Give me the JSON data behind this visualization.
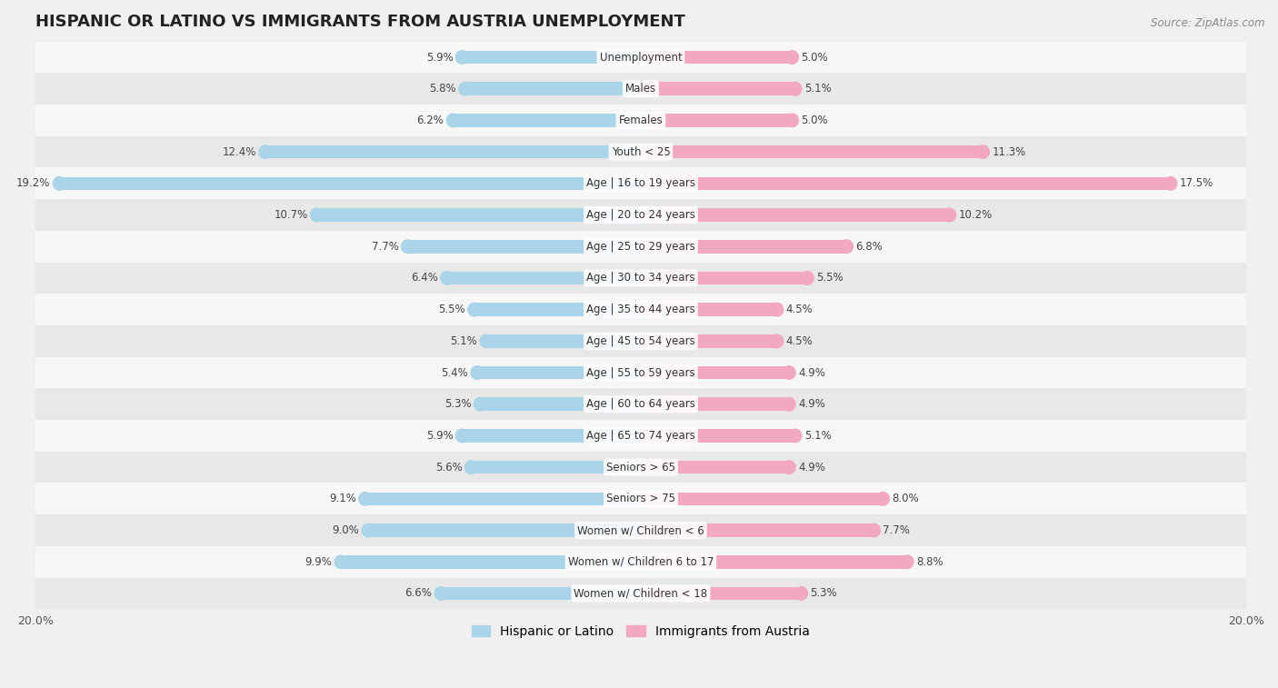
{
  "title": "HISPANIC OR LATINO VS IMMIGRANTS FROM AUSTRIA UNEMPLOYMENT",
  "source": "Source: ZipAtlas.com",
  "categories": [
    "Unemployment",
    "Males",
    "Females",
    "Youth < 25",
    "Age | 16 to 19 years",
    "Age | 20 to 24 years",
    "Age | 25 to 29 years",
    "Age | 30 to 34 years",
    "Age | 35 to 44 years",
    "Age | 45 to 54 years",
    "Age | 55 to 59 years",
    "Age | 60 to 64 years",
    "Age | 65 to 74 years",
    "Seniors > 65",
    "Seniors > 75",
    "Women w/ Children < 6",
    "Women w/ Children 6 to 17",
    "Women w/ Children < 18"
  ],
  "hispanic_values": [
    5.9,
    5.8,
    6.2,
    12.4,
    19.2,
    10.7,
    7.7,
    6.4,
    5.5,
    5.1,
    5.4,
    5.3,
    5.9,
    5.6,
    9.1,
    9.0,
    9.9,
    6.6
  ],
  "austria_values": [
    5.0,
    5.1,
    5.0,
    11.3,
    17.5,
    10.2,
    6.8,
    5.5,
    4.5,
    4.5,
    4.9,
    4.9,
    5.1,
    4.9,
    8.0,
    7.7,
    8.8,
    5.3
  ],
  "hispanic_color": "#aad4e8",
  "austria_color": "#f2a8bf",
  "hispanic_label": "Hispanic or Latino",
  "austria_label": "Immigrants from Austria",
  "bar_height": 0.42,
  "max_value": 20.0,
  "background_color": "#f0f0f0",
  "row_colors_even": "#f7f7f7",
  "row_colors_odd": "#e8e8e8",
  "title_fontsize": 13,
  "label_fontsize": 8.5,
  "value_fontsize": 8.5,
  "legend_fontsize": 10,
  "xlabel_value": "20.0%",
  "xlabel_value_right": "20.0%"
}
